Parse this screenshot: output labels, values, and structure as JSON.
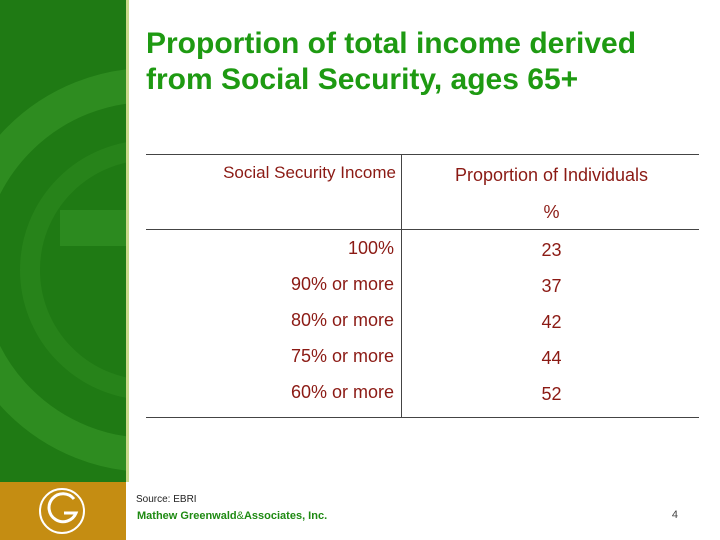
{
  "title": "Proportion of total income derived from Social Security, ages 65+",
  "table": {
    "header_left": "Social Security Income",
    "header_right_line1": "Proportion of Individuals",
    "header_right_line2": "%",
    "rows": [
      {
        "income": "100%",
        "proportion": "23"
      },
      {
        "income": "90% or more",
        "proportion": "37"
      },
      {
        "income": "80% or more",
        "proportion": "42"
      },
      {
        "income": "75% or more",
        "proportion": "44"
      },
      {
        "income": "60% or more",
        "proportion": "52"
      }
    ]
  },
  "footer": {
    "source": "Source: EBRI",
    "company_part1": "Mathew Greenwald",
    "company_amp": "&",
    "company_part2": "Associates, Inc.",
    "page_number": "4"
  },
  "colors": {
    "sidebar": "#1f7a14",
    "logo_box": "#c58d12",
    "title": "#1e9a12",
    "table_text": "#8b1a14"
  }
}
